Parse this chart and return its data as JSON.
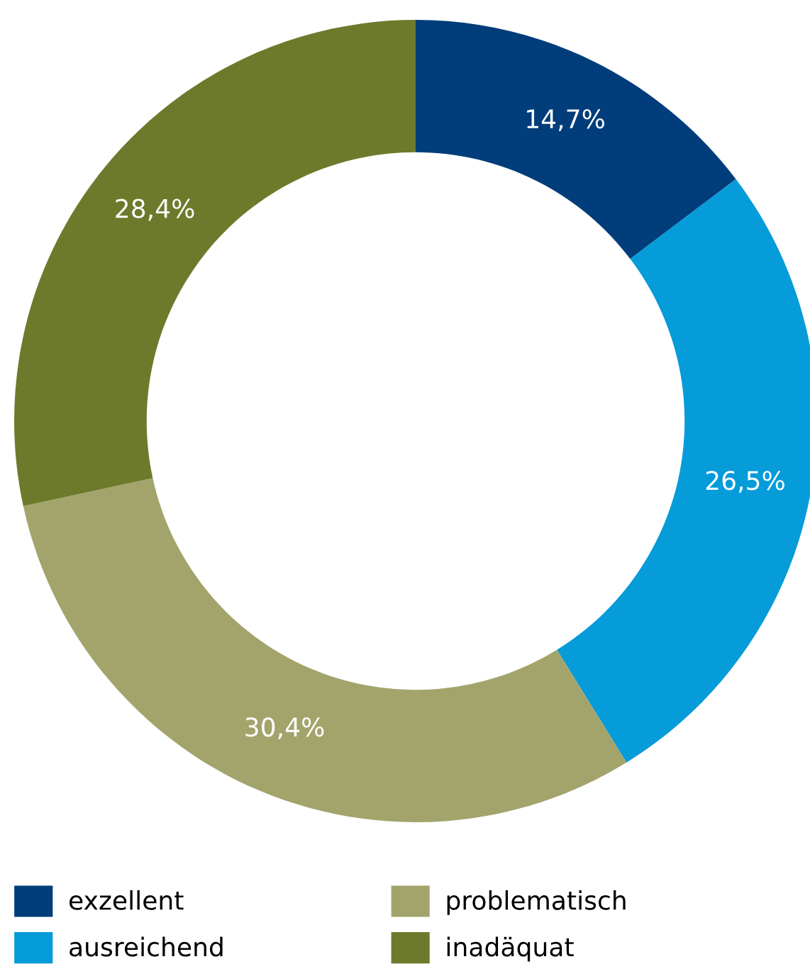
{
  "chart_data": {
    "type": "donut",
    "categories": [
      "exzellent",
      "ausreichend",
      "problematisch",
      "inadäquat"
    ],
    "values": [
      14.7,
      26.5,
      30.4,
      28.4
    ],
    "colors": [
      "#003d7a",
      "#069bd9",
      "#a3a46c",
      "#6e7a2b"
    ],
    "value_labels": [
      "14,7%",
      "26,5%",
      "30,4%",
      "28,4%"
    ],
    "legend": "bottom"
  }
}
